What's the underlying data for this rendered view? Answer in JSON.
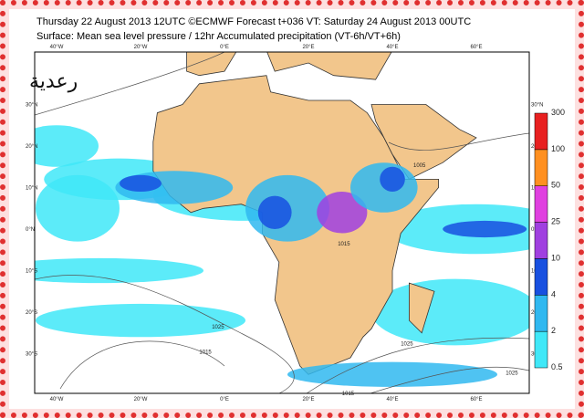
{
  "header": {
    "title": "Thursday 22 August 2013 12UTC ©ECMWF Forecast t+036 VT: Saturday 24 August 2013 00UTC",
    "subtitle": "Surface: Mean sea level pressure / 12hr Accumulated precipitation (VT-6h/VT+6h)"
  },
  "watermark": "رعدية",
  "map": {
    "lon_labels": [
      "40°W",
      "20°W",
      "0°E",
      "20°E",
      "40°E",
      "60°E"
    ],
    "lon_values": [
      -40,
      -20,
      0,
      20,
      40,
      60
    ],
    "lat_labels": [
      "30°N",
      "20°N",
      "10°N",
      "0°N",
      "10°S",
      "20°S",
      "30°S"
    ],
    "lat_values": [
      30,
      20,
      10,
      0,
      -10,
      -20,
      -30
    ],
    "land_color": "#f2c68c",
    "isobar_labels": [
      {
        "text": "1015",
        "lon": -6,
        "lat": -30
      },
      {
        "text": "1025",
        "lon": -3,
        "lat": -24
      },
      {
        "text": "1025",
        "lon": 42,
        "lat": -28
      },
      {
        "text": "1005",
        "lon": 45,
        "lat": 15
      },
      {
        "text": "1015",
        "lon": 27,
        "lat": -4
      },
      {
        "text": "1015",
        "lon": 28,
        "lat": -40
      },
      {
        "text": "1025",
        "lon": 67,
        "lat": -35
      }
    ]
  },
  "colorbar": {
    "levels": [
      0.5,
      2,
      4,
      10,
      25,
      50,
      100,
      300
    ],
    "colors": [
      "#40e8f8",
      "#30b8f0",
      "#1850e0",
      "#a040e0",
      "#e040e0",
      "#ff9020",
      "#e82020"
    ]
  }
}
